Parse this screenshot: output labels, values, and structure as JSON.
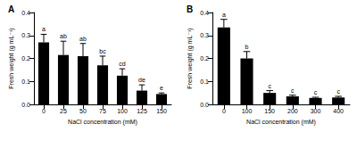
{
  "chart_data": [
    {
      "type": "bar",
      "title": "A",
      "x_label": "NaCl concentration (mM)",
      "y_label": "Fresh weight (g mL⁻¹)",
      "categories": [
        "0",
        "25",
        "50",
        "75",
        "100",
        "125",
        "150"
      ],
      "values": [
        0.27,
        0.215,
        0.21,
        0.17,
        0.125,
        0.06,
        0.045
      ],
      "errors": [
        0.035,
        0.06,
        0.055,
        0.04,
        0.03,
        0.025,
        0.005
      ],
      "annotations": [
        "a",
        "ab",
        "ab",
        "bc",
        "cd",
        "de",
        "e"
      ],
      "color": "#000000",
      "ylim": [
        0,
        0.4
      ],
      "yticks": [
        {
          "value": 0,
          "label": "0.0"
        },
        0.1,
        0.2,
        0.3,
        0.4
      ]
    },
    {
      "type": "bar",
      "title": "B",
      "x_label": "NaCl concentration (mM)",
      "y_label": "Fresh weight (g mL⁻¹)",
      "categories": [
        "0",
        "100",
        "150",
        "200",
        "300",
        "400"
      ],
      "values": [
        0.335,
        0.2,
        0.05,
        0.035,
        0.028,
        0.03
      ],
      "errors": [
        0.035,
        0.03,
        0.01,
        0.005,
        0.003,
        0.005
      ],
      "annotations": [
        "a",
        "b",
        "c",
        "c",
        "c",
        "c"
      ],
      "color": "#000000",
      "ylim": [
        0,
        0.4
      ],
      "yticks": [
        {
          "value": 0,
          "label": "0.0"
        },
        0.1,
        0.2,
        0.3,
        0.4
      ]
    }
  ]
}
